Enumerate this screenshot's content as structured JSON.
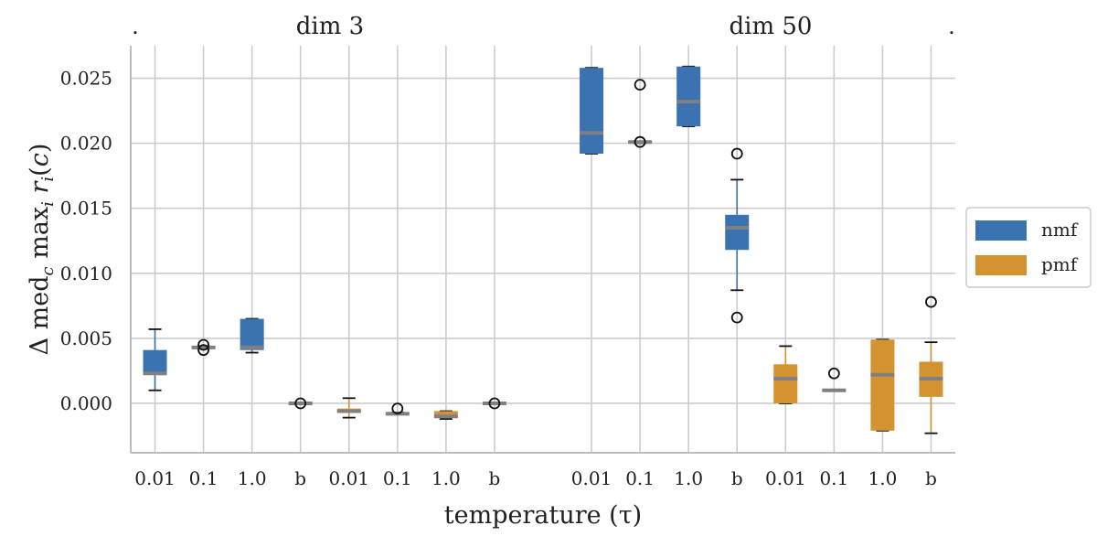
{
  "chart_data": {
    "type": "box",
    "panels": [
      {
        "title": "dim 3",
        "categories": [
          "0.01",
          "0.1",
          "1.0",
          "b",
          "0.01",
          "0.1",
          "1.0",
          "b"
        ],
        "boxes": [
          {
            "series": "nmf",
            "q1": 0.0022,
            "median": 0.0023,
            "q3": 0.0041,
            "whisker_low": 0.001,
            "whisker_high": 0.0057,
            "outliers": []
          },
          {
            "series": "nmf",
            "q1": 0.0042,
            "median": 0.0043,
            "q3": 0.0044,
            "whisker_low": 0.0042,
            "whisker_high": 0.0044,
            "outliers": [
              0.0041,
              0.0045
            ]
          },
          {
            "series": "nmf",
            "q1": 0.0041,
            "median": 0.0043,
            "q3": 0.0065,
            "whisker_low": 0.0039,
            "whisker_high": 0.0065,
            "outliers": []
          },
          {
            "series": "nmf",
            "q1": 0.0,
            "median": 0.0,
            "q3": 0.0,
            "whisker_low": 0.0,
            "whisker_high": 0.0,
            "outliers": [
              0.0
            ]
          },
          {
            "series": "pmf",
            "q1": -0.0007,
            "median": -0.0006,
            "q3": -0.0004,
            "whisker_low": -0.0011,
            "whisker_high": 0.0004,
            "outliers": []
          },
          {
            "series": "pmf",
            "q1": -0.0008,
            "median": -0.0008,
            "q3": -0.0007,
            "whisker_low": -0.0008,
            "whisker_high": -0.0007,
            "outliers": [
              -0.0004
            ]
          },
          {
            "series": "pmf",
            "q1": -0.0011,
            "median": -0.001,
            "q3": -0.0006,
            "whisker_low": -0.0012,
            "whisker_high": -0.0006,
            "outliers": []
          },
          {
            "series": "pmf",
            "q1": 0.0,
            "median": 0.0,
            "q3": 0.0,
            "whisker_low": 0.0,
            "whisker_high": 0.0,
            "outliers": [
              0.0
            ]
          }
        ]
      },
      {
        "title": "dim 50",
        "categories": [
          "0.01",
          "0.1",
          "1.0",
          "b",
          "0.01",
          "0.1",
          "1.0",
          "b"
        ],
        "boxes": [
          {
            "series": "nmf",
            "q1": 0.0192,
            "median": 0.0208,
            "q3": 0.0258,
            "whisker_low": 0.0192,
            "whisker_high": 0.0258,
            "outliers": []
          },
          {
            "series": "nmf",
            "q1": 0.02,
            "median": 0.0201,
            "q3": 0.0201,
            "whisker_low": 0.02,
            "whisker_high": 0.0201,
            "outliers": [
              0.0245,
              0.0201
            ]
          },
          {
            "series": "nmf",
            "q1": 0.0213,
            "median": 0.0232,
            "q3": 0.0259,
            "whisker_low": 0.0213,
            "whisker_high": 0.0259,
            "outliers": []
          },
          {
            "series": "nmf",
            "q1": 0.0118,
            "median": 0.0135,
            "q3": 0.0145,
            "whisker_low": 0.0087,
            "whisker_high": 0.0172,
            "outliers": [
              0.0192,
              0.0066
            ]
          },
          {
            "series": "pmf",
            "q1": 0.0,
            "median": 0.0019,
            "q3": 0.003,
            "whisker_low": 0.0,
            "whisker_high": 0.0044,
            "outliers": []
          },
          {
            "series": "pmf",
            "q1": 0.001,
            "median": 0.001,
            "q3": 0.001,
            "whisker_low": 0.001,
            "whisker_high": 0.001,
            "outliers": [
              0.0023
            ]
          },
          {
            "series": "pmf",
            "q1": -0.0021,
            "median": 0.0022,
            "q3": 0.0049,
            "whisker_low": -0.0021,
            "whisker_high": 0.0049,
            "outliers": []
          },
          {
            "series": "pmf",
            "q1": 0.0005,
            "median": 0.0019,
            "q3": 0.0032,
            "whisker_low": -0.0023,
            "whisker_high": 0.0047,
            "outliers": [
              0.0078
            ]
          }
        ]
      }
    ],
    "ylabel": "Δ med_c max_i r_i(c)",
    "xlabel": "temperature (τ)",
    "yticks": [
      "0.000",
      "0.005",
      "0.010",
      "0.015",
      "0.020",
      "0.025"
    ],
    "ylim": [
      -0.0038,
      0.0275
    ],
    "legend": {
      "position": "right",
      "entries": [
        "nmf",
        "pmf"
      ]
    },
    "colors": {
      "nmf": "#3b72b0",
      "pmf": "#d39331",
      "median": "#808080",
      "grid": "#cccccc",
      "axis": "#bcbcbc"
    },
    "grid": true,
    "corner_marks": [
      ".",
      "."
    ]
  }
}
